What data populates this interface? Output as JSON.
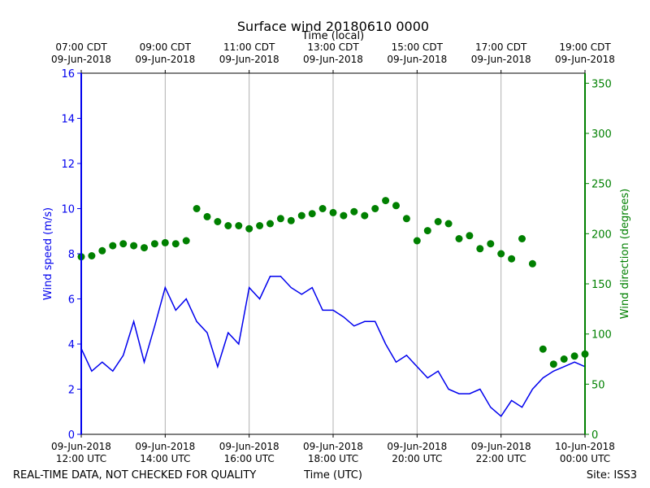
{
  "chart_data": {
    "type": "line",
    "title": "Surface wind 20180610 0000",
    "top_axis_label": "Time (local)",
    "xlabel": "Time (UTC)",
    "ylabel_left": "Wind speed (m/s)",
    "ylabel_right": "Wind direction (degrees)",
    "footer_left": "REAL-TIME DATA, NOT CHECKED FOR QUALITY",
    "footer_right": "Site: ISS3",
    "x_range_hours": [
      0,
      12
    ],
    "ylim_left": [
      0,
      16
    ],
    "ylim_right": [
      0,
      360
    ],
    "y_ticks_left": [
      0,
      2,
      4,
      6,
      8,
      10,
      12,
      14,
      16
    ],
    "y_ticks_right": [
      0,
      50,
      100,
      150,
      200,
      250,
      300,
      350
    ],
    "x_ticks_bottom": [
      {
        "h": 0,
        "line1": "09-Jun-2018",
        "line2": "12:00 UTC"
      },
      {
        "h": 2,
        "line1": "09-Jun-2018",
        "line2": "14:00 UTC"
      },
      {
        "h": 4,
        "line1": "09-Jun-2018",
        "line2": "16:00 UTC"
      },
      {
        "h": 6,
        "line1": "09-Jun-2018",
        "line2": "18:00 UTC"
      },
      {
        "h": 8,
        "line1": "09-Jun-2018",
        "line2": "20:00 UTC"
      },
      {
        "h": 10,
        "line1": "09-Jun-2018",
        "line2": "22:00 UTC"
      },
      {
        "h": 12,
        "line1": "10-Jun-2018",
        "line2": "00:00 UTC"
      }
    ],
    "x_ticks_top": [
      {
        "h": 0,
        "line1": "07:00 CDT",
        "line2": "09-Jun-2018"
      },
      {
        "h": 2,
        "line1": "09:00 CDT",
        "line2": "09-Jun-2018"
      },
      {
        "h": 4,
        "line1": "11:00 CDT",
        "line2": "09-Jun-2018"
      },
      {
        "h": 6,
        "line1": "13:00 CDT",
        "line2": "09-Jun-2018"
      },
      {
        "h": 8,
        "line1": "15:00 CDT",
        "line2": "09-Jun-2018"
      },
      {
        "h": 10,
        "line1": "17:00 CDT",
        "line2": "09-Jun-2018"
      },
      {
        "h": 12,
        "line1": "19:00 CDT",
        "line2": "09-Jun-2018"
      }
    ],
    "grid": "vertical",
    "series": [
      {
        "name": "Wind speed",
        "axis": "left",
        "color": "#0000ee",
        "style": "line",
        "x": [
          0,
          0.25,
          0.5,
          0.75,
          1,
          1.25,
          1.5,
          1.75,
          2,
          2.25,
          2.5,
          2.75,
          3,
          3.25,
          3.5,
          3.75,
          4,
          4.25,
          4.5,
          4.75,
          5,
          5.25,
          5.5,
          5.75,
          6,
          6.25,
          6.5,
          6.75,
          7,
          7.25,
          7.5,
          7.75,
          8,
          8.25,
          8.5,
          8.75,
          9,
          9.25,
          9.5,
          9.75,
          10,
          10.25,
          10.5,
          10.75,
          11,
          11.25,
          11.5,
          11.75,
          12
        ],
        "values": [
          3.8,
          2.8,
          3.2,
          2.8,
          3.5,
          5.0,
          3.2,
          4.8,
          6.5,
          5.5,
          6.0,
          5.0,
          4.5,
          3.0,
          4.5,
          4.0,
          6.5,
          6.0,
          7.0,
          7.0,
          6.5,
          6.2,
          6.5,
          5.5,
          5.5,
          5.2,
          4.8,
          5.0,
          5.0,
          4.0,
          3.2,
          3.5,
          3.0,
          2.5,
          2.8,
          2.0,
          1.8,
          1.8,
          2.0,
          1.2,
          0.8,
          1.5,
          1.2,
          2.0,
          2.5,
          2.8,
          3.0,
          3.2,
          3.0
        ]
      },
      {
        "name": "Wind direction",
        "axis": "right",
        "color": "#008000",
        "style": "scatter",
        "x": [
          0,
          0.25,
          0.5,
          0.75,
          1,
          1.25,
          1.5,
          1.75,
          2,
          2.25,
          2.5,
          2.75,
          3,
          3.25,
          3.5,
          3.75,
          4,
          4.25,
          4.5,
          4.75,
          5,
          5.25,
          5.5,
          5.75,
          6,
          6.25,
          6.5,
          6.75,
          7,
          7.25,
          7.5,
          7.75,
          8,
          8.25,
          8.5,
          8.75,
          9,
          9.25,
          9.5,
          9.75,
          10,
          10.25,
          10.5,
          10.75,
          11,
          11.25,
          11.5,
          11.75,
          12
        ],
        "values": [
          177,
          178,
          183,
          188,
          190,
          188,
          186,
          190,
          191,
          190,
          193,
          225,
          217,
          212,
          208,
          208,
          205,
          208,
          210,
          215,
          213,
          218,
          220,
          225,
          221,
          218,
          222,
          218,
          225,
          233,
          228,
          215,
          193,
          203,
          212,
          210,
          195,
          198,
          185,
          190,
          180,
          175,
          195,
          170,
          85,
          70,
          75,
          78,
          80
        ]
      }
    ]
  }
}
